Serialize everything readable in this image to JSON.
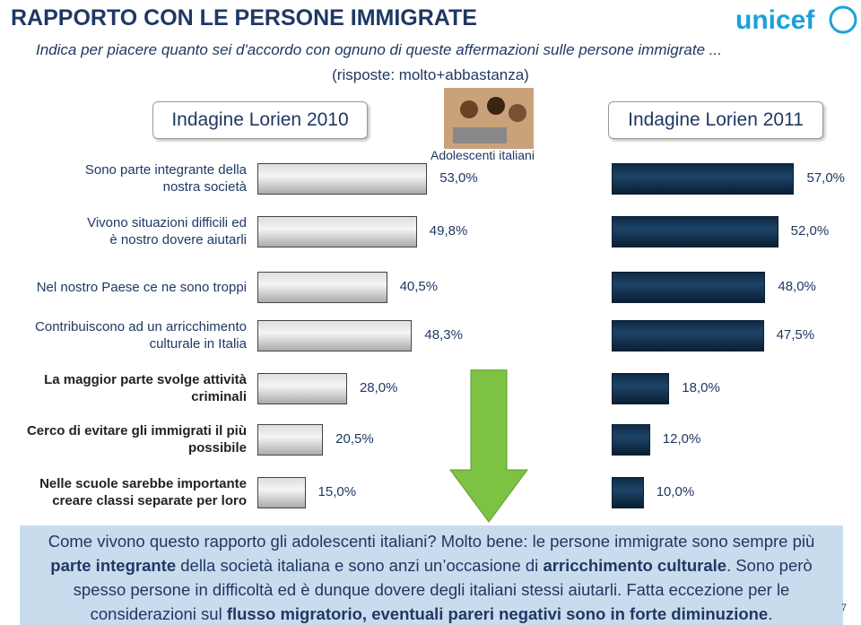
{
  "chart_data": {
    "type": "bar",
    "orientation": "horizontal",
    "title": "RAPPORTO CON LE PERSONE IMMIGRATE",
    "subtitle": "Indica per piacere quanto sei d'accordo con ognuno di queste affermazioni sulle persone immigrate ...",
    "subtitle2": "(risposte: molto+abbastanza)",
    "annotation": "Adolescenti italiani",
    "logo": "unicef",
    "page_number": "7",
    "categories": [
      "Sono parte integrante della nostra società",
      "Vivono situazioni difficili ed è nostro dovere aiutarli",
      "Nel nostro Paese ce ne sono troppi",
      "Contribuiscono ad un arricchimento culturale in Italia",
      "La maggior parte svolge attività criminali",
      "Cerco di evitare gli immigrati il più possibile",
      "Nelle scuole sarebbe importante creare classi separate per loro"
    ],
    "series": [
      {
        "name": "Indagine Lorien 2010",
        "color": "#d9d9d9",
        "values": [
          53.0,
          49.8,
          40.5,
          48.3,
          28.0,
          20.5,
          15.0
        ],
        "value_labels": [
          "53,0%",
          "49,8%",
          "40,5%",
          "48,3%",
          "28,0%",
          "20,5%",
          "15,0%"
        ]
      },
      {
        "name": "Indagine Lorien 2011",
        "color": "#17375e",
        "values": [
          57.0,
          52.0,
          48.0,
          47.5,
          18.0,
          12.0,
          10.0
        ],
        "value_labels": [
          "57,0%",
          "52,0%",
          "48,0%",
          "47,5%",
          "18,0%",
          "12,0%",
          "10,0%"
        ]
      }
    ],
    "note": [
      {
        "text": "Come vivono questo rapporto gli adolescenti italiani? Molto bene: le persone immigrate sono sempre più ",
        "bold": false
      },
      {
        "text": "parte integrante",
        "bold": true
      },
      {
        "text": " della società italiana e sono anzi un’occasione di ",
        "bold": false
      },
      {
        "text": "arricchimento culturale",
        "bold": true
      },
      {
        "text": ". Sono però spesso persone in difficoltà ed è dunque dovere degli italiani stessi aiutarli. Fatta eccezione per le considerazioni sul ",
        "bold": false
      },
      {
        "text": "flusso migratorio, eventuali pareri negativi sono in forte diminuzione",
        "bold": true
      },
      {
        "text": ".",
        "bold": false
      }
    ]
  }
}
